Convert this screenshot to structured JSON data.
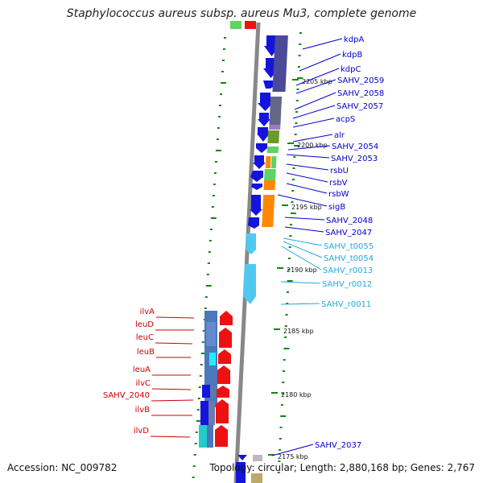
{
  "title": "Staphylococcus aureus subsp. aureus Mu3, complete genome",
  "footer": {
    "accession": "Accession: NC_009782",
    "summary": "Topology: circular; Length: 2,880,168 bp; Genes: 2,767"
  },
  "colors": {
    "forward_gene": "#0a14d8",
    "reverse_gene": "#ee1111",
    "rna_gene": "#33bbee",
    "right_label": "#0000cc",
    "rna_label": "#22aadd",
    "left_label": "#cc0000",
    "tick": "#118811",
    "backbone": "#888888"
  },
  "scale_labels": [
    "2205 kbp",
    "2200 kbp",
    "2195 kbp",
    "2190 kbp",
    "2185 kbp",
    "2180 kbp",
    "2175 kbp"
  ],
  "right_labels": [
    "kdpA",
    "kdpB",
    "kdpC",
    "SAHV_2059",
    "SAHV_2058",
    "SAHV_2057",
    "acpS",
    "alr",
    "SAHV_2054",
    "SAHV_2053",
    "rsbU",
    "rsbV",
    "rsbW",
    "sigB",
    "SAHV_2048",
    "SAHV_2047",
    "SAHV_t0055",
    "SAHV_t0054",
    "SAHV_r0013",
    "SAHV_r0012",
    "SAHV_r0011",
    "SAHV_2037"
  ],
  "left_labels": [
    "ilvA",
    "leuD",
    "leuC",
    "leuB",
    "leuA",
    "ilvC",
    "SAHV_2040",
    "ilvB",
    "ilvD"
  ]
}
